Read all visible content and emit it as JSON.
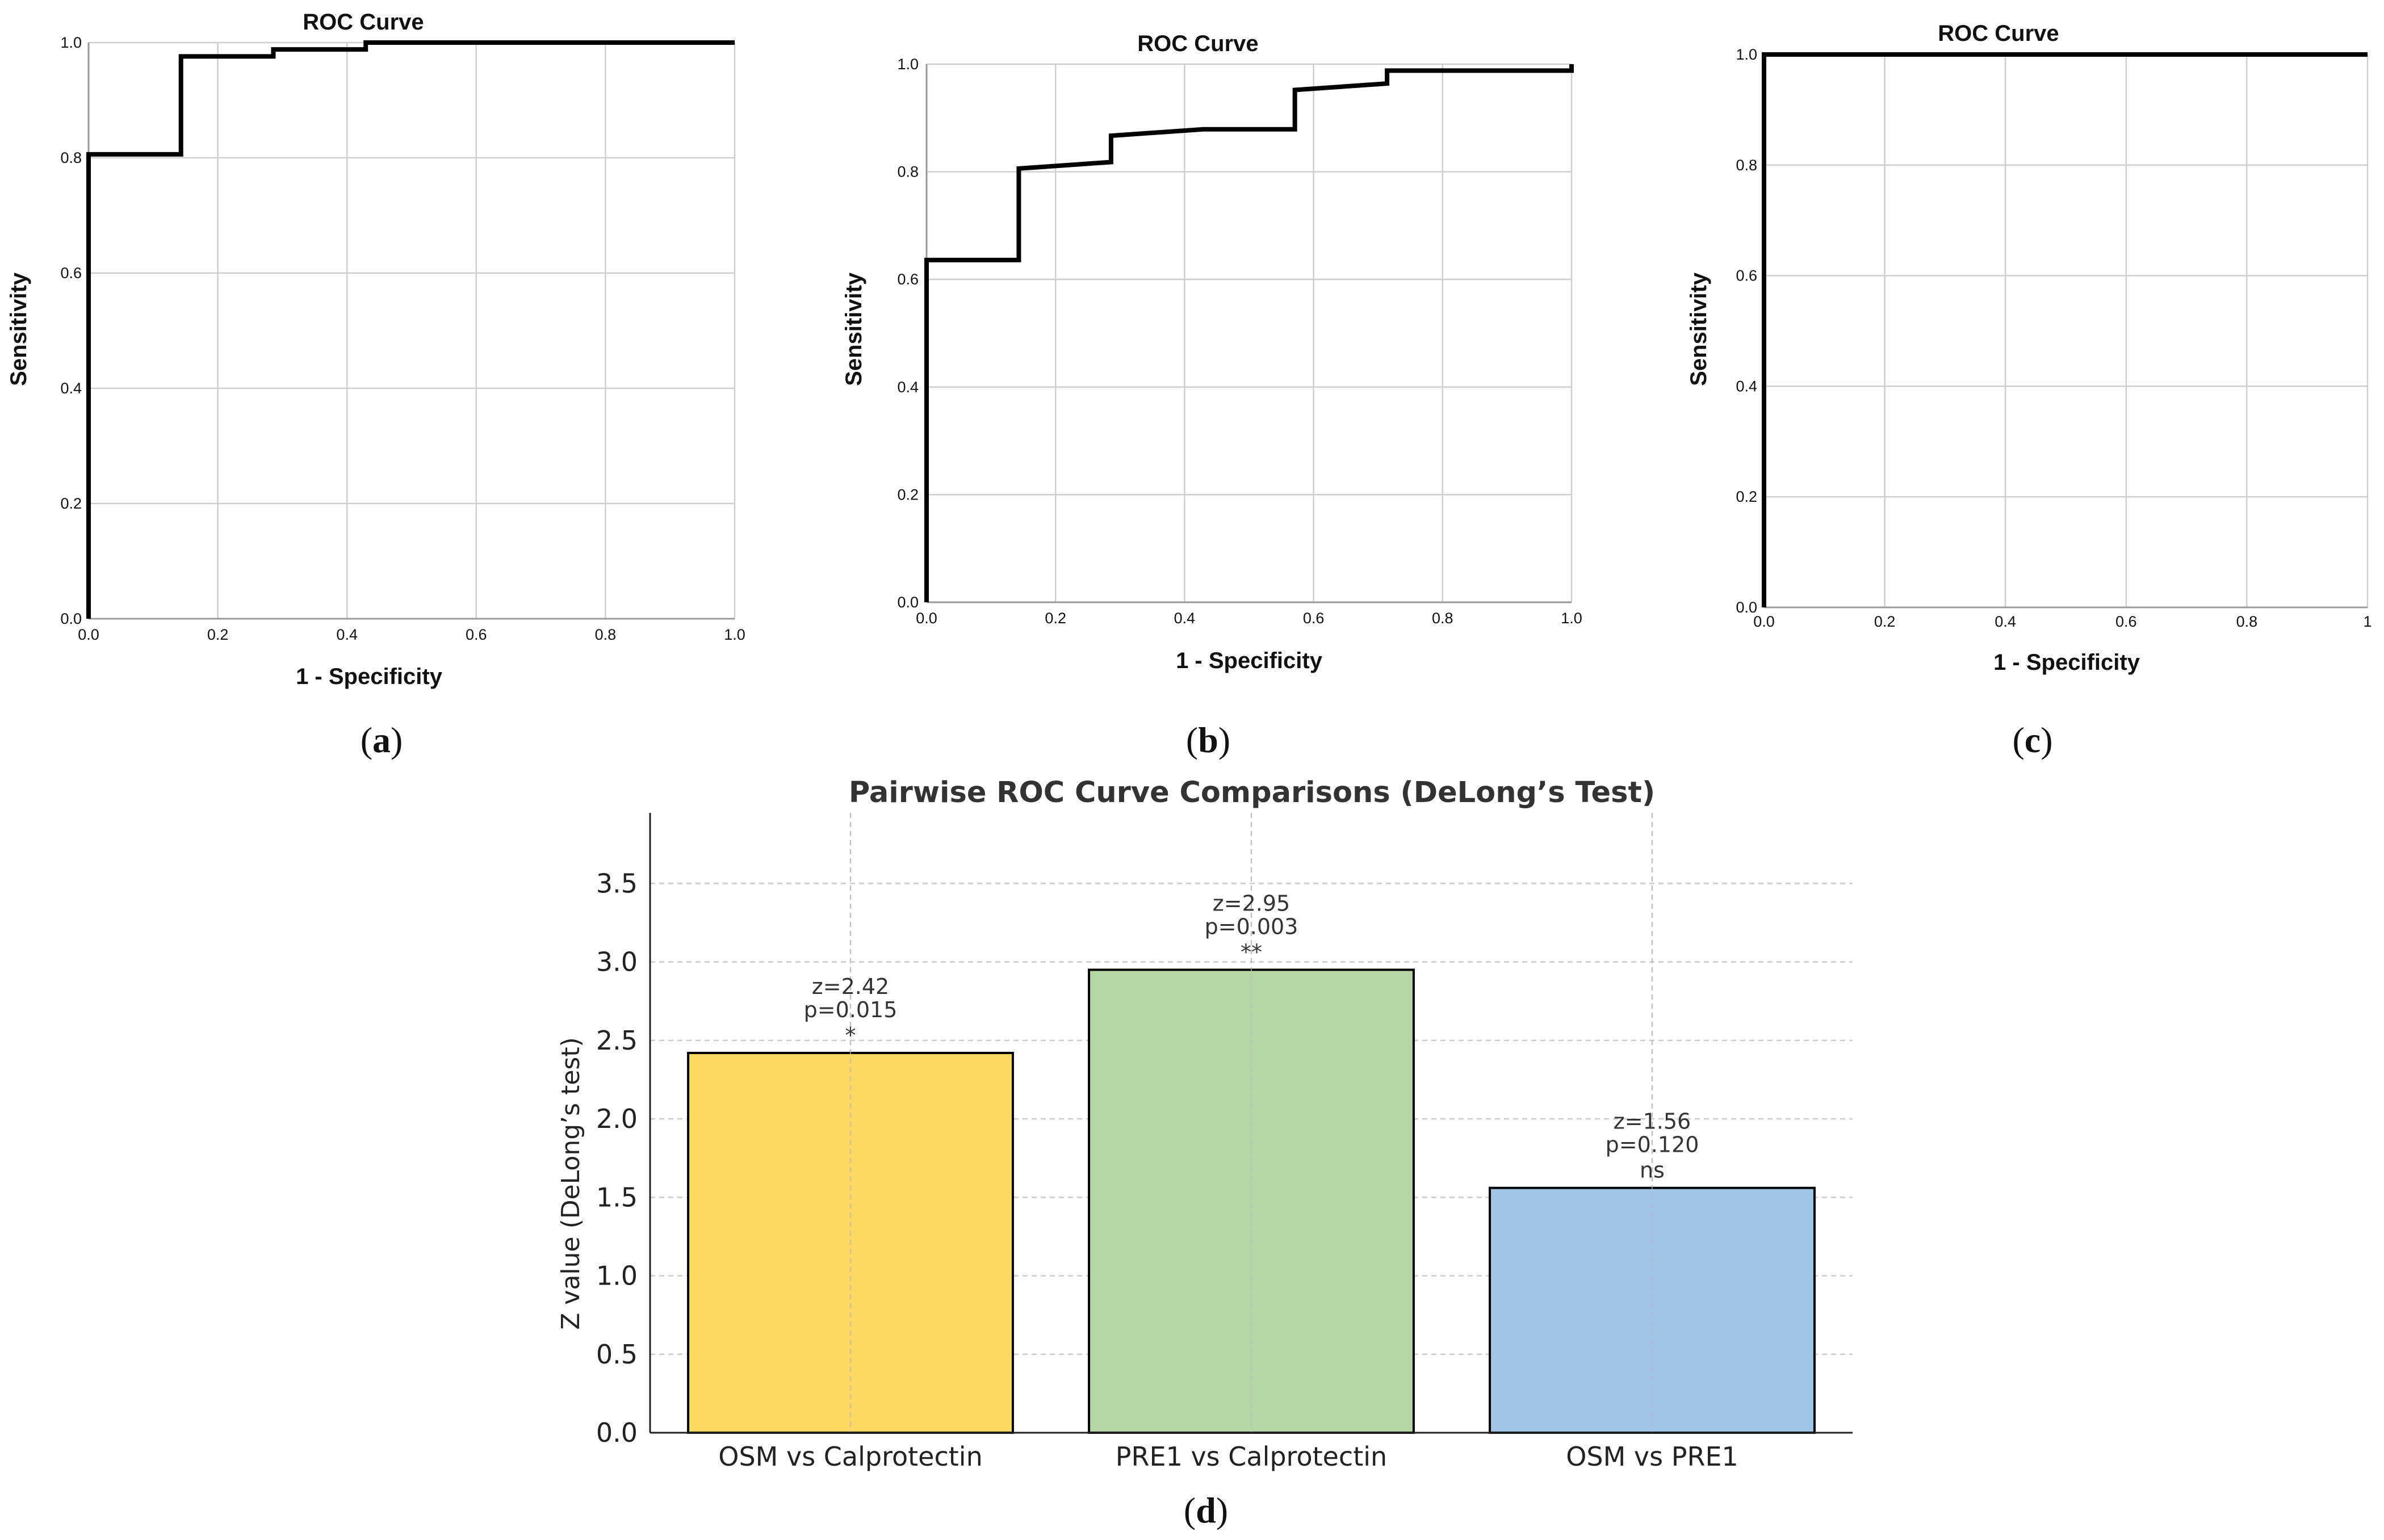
{
  "panels": [
    {
      "id": "a",
      "label": "(a)",
      "label_letter": "a"
    },
    {
      "id": "b",
      "label": "(b)",
      "label_letter": "b"
    },
    {
      "id": "c",
      "label": "(c)",
      "label_letter": "c"
    },
    {
      "id": "d",
      "label": "(d)",
      "label_letter": "d"
    }
  ],
  "chart_data": [
    {
      "panel": "a",
      "type": "line",
      "title": "ROC Curve",
      "xlabel": "1 - Specificity",
      "ylabel": "Sensitivity",
      "xlim": [
        0,
        1
      ],
      "ylim": [
        0,
        1
      ],
      "xticks": [
        "0.0",
        "0.2",
        "0.4",
        "0.6",
        "0.8",
        "1.0"
      ],
      "yticks": [
        "0.0",
        "0.2",
        "0.4",
        "0.6",
        "0.8",
        "1.0"
      ],
      "grid": true,
      "series": [
        {
          "x": [
            0,
            0,
            0.143,
            0.143,
            0.286,
            0.286,
            0.429,
            0.429,
            1.0
          ],
          "y": [
            0,
            0.806,
            0.806,
            0.976,
            0.976,
            0.988,
            0.988,
            1.0,
            1.0
          ]
        }
      ]
    },
    {
      "panel": "b",
      "type": "line",
      "title": "ROC Curve",
      "xlabel": "1 - Specificity",
      "ylabel": "Sensitivity",
      "xlim": [
        0,
        1
      ],
      "ylim": [
        0,
        1
      ],
      "xticks": [
        "0.0",
        "0.2",
        "0.4",
        "0.6",
        "0.8",
        "1.0"
      ],
      "yticks": [
        "0.0",
        "0.2",
        "0.4",
        "0.6",
        "0.8",
        "1.0"
      ],
      "grid": true,
      "series": [
        {
          "x": [
            0,
            0,
            0.143,
            0.143,
            0.286,
            0.286,
            0.429,
            0.571,
            0.571,
            0.714,
            0.714,
            1.0,
            1.0
          ],
          "y": [
            0,
            0.636,
            0.636,
            0.806,
            0.818,
            0.867,
            0.879,
            0.879,
            0.952,
            0.964,
            0.988,
            0.988,
            1.0
          ]
        }
      ]
    },
    {
      "panel": "c",
      "type": "line",
      "title": "ROC Curve",
      "xlabel": "1 - Specificity",
      "ylabel": "Sensitivity",
      "xlim": [
        0,
        1
      ],
      "ylim": [
        0,
        1
      ],
      "xticks": [
        "0.0",
        "0.2",
        "0.4",
        "0.6",
        "0.8",
        "1"
      ],
      "yticks": [
        "0.0",
        "0.2",
        "0.4",
        "0.6",
        "0.8",
        "1.0"
      ],
      "grid": true,
      "series": [
        {
          "x": [
            0,
            0,
            1.0
          ],
          "y": [
            0,
            1.0,
            1.0
          ]
        }
      ]
    },
    {
      "panel": "d",
      "type": "bar",
      "title": "Pairwise ROC Curve Comparisons (DeLong’s Test)",
      "xlabel": "",
      "ylabel": "Z value (DeLong’s test)",
      "ylim": [
        0,
        3.95
      ],
      "yticks": [
        "0.0",
        "0.5",
        "1.0",
        "1.5",
        "2.0",
        "2.5",
        "3.0",
        "3.5"
      ],
      "grid": true,
      "categories": [
        "OSM vs Calprotectin",
        "PRE1 vs Calprotectin",
        "OSM vs PRE1"
      ],
      "values": [
        2.42,
        2.95,
        1.56
      ],
      "colors": [
        "#FDD865",
        "#B5D7A5",
        "#A0C4E8"
      ],
      "annotations": [
        [
          "z=2.42",
          "p=0.015",
          "*"
        ],
        [
          "z=2.95",
          "p=0.003",
          "**"
        ],
        [
          "z=1.56",
          "p=0.120",
          "ns"
        ]
      ]
    }
  ]
}
